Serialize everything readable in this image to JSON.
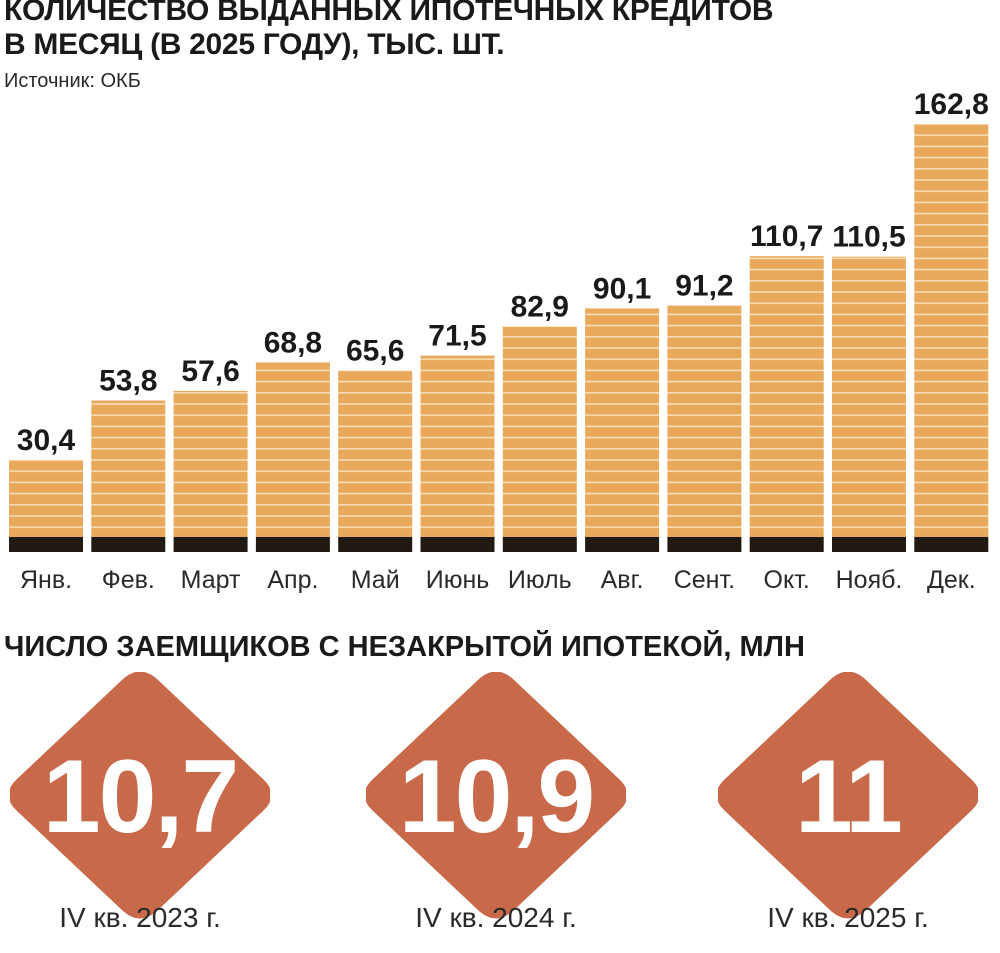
{
  "header": {
    "title_line1": "КОЛИЧЕСТВО ВЫДАННЫХ ИПОТЕЧНЫХ КРЕДИТОВ",
    "title_line2": "В МЕСЯЦ (В 2025 ГОДУ), ТЫС. ШТ.",
    "source": "Источник: ОКБ"
  },
  "chart_data": {
    "type": "bar",
    "categories": [
      "Янв.",
      "Фев.",
      "Март",
      "Апр.",
      "Май",
      "Июнь",
      "Июль",
      "Авг.",
      "Сент.",
      "Окт.",
      "Нояб.",
      "Дек."
    ],
    "values": [
      30.4,
      53.8,
      57.6,
      68.8,
      65.6,
      71.5,
      82.9,
      90.1,
      91.2,
      110.7,
      110.5,
      162.8
    ],
    "value_labels": [
      "30,4",
      "53,8",
      "57,6",
      "68,8",
      "65,6",
      "71,5",
      "82,9",
      "90,1",
      "91,2",
      "110,7",
      "110,5",
      "162,8"
    ],
    "title": "КОЛИЧЕСТВО ВЫДАННЫХ ИПОТЕЧНЫХ КРЕДИТОВ В МЕСЯЦ (В 2025 ГОДУ), ТЫС. ШТ.",
    "xlabel": "",
    "ylabel": "",
    "grid": false,
    "legend": "none",
    "colors": {
      "bar": "#E8A95B",
      "stripe": "#F6DDB5",
      "base": "#211A13"
    }
  },
  "borrowers": {
    "title": "ЧИСЛО ЗАЕМЩИКОВ С НЕЗАКРЫТОЙ ИПОТЕКОЙ, МЛН",
    "color": "#C8694A",
    "items": [
      {
        "value": "10,7",
        "period": "IV кв. 2023 г."
      },
      {
        "value": "10,9",
        "period": "IV кв. 2024 г."
      },
      {
        "value": "11",
        "period": "IV кв. 2025 г."
      }
    ]
  }
}
